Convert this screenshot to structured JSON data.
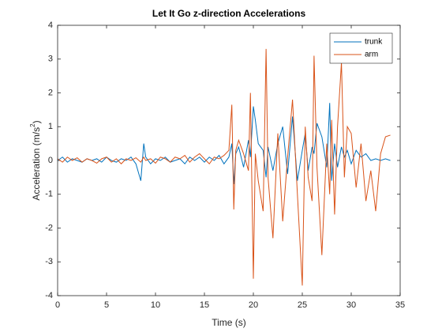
{
  "chart_data": {
    "type": "line",
    "title": "Let It Go z-direction Accelerations",
    "xlabel": "Time (s)",
    "ylabel": [
      "Acceleration (m/s",
      "2",
      ")"
    ],
    "x": [
      0,
      0.5,
      1,
      1.5,
      2,
      2.5,
      3,
      3.5,
      4,
      4.5,
      5,
      5.5,
      6,
      6.5,
      7,
      7.5,
      8,
      8.5,
      8.8,
      9,
      9.5,
      10,
      10.5,
      11,
      11.5,
      12,
      12.5,
      13,
      13.5,
      14,
      14.5,
      15,
      15.5,
      16,
      16.5,
      17,
      17.5,
      17.8,
      18,
      18.2,
      18.5,
      19,
      19.5,
      19.7,
      20,
      20.2,
      20.5,
      21,
      21.3,
      21.5,
      22,
      22.5,
      23,
      23.5,
      24,
      24.5,
      25,
      25.3,
      25.6,
      26,
      26.2,
      26.5,
      27,
      27.5,
      27.8,
      28,
      28.3,
      28.6,
      29,
      29.3,
      29.6,
      30,
      30.5,
      31,
      31.5,
      32,
      32.5,
      33,
      33.5,
      34
    ],
    "series": [
      {
        "name": "trunk",
        "color": "#0072BD",
        "values": [
          0,
          0.1,
          -0.05,
          0.05,
          0,
          -0.05,
          0.05,
          0,
          0.05,
          -0.05,
          0.1,
          0,
          -0.05,
          0.05,
          0,
          0.1,
          -0.1,
          -0.6,
          0.5,
          0.1,
          -0.1,
          0.05,
          0,
          0.1,
          -0.05,
          0,
          0.05,
          -0.1,
          0.1,
          0,
          0.1,
          -0.05,
          0.1,
          0,
          0.15,
          -0.1,
          0.1,
          0.5,
          -0.7,
          0.2,
          0.4,
          -0.2,
          0.6,
          0.1,
          1.6,
          1.2,
          0.5,
          0.3,
          -0.5,
          0.4,
          -0.3,
          0.5,
          1.0,
          -0.4,
          1.3,
          -0.6,
          0.3,
          0.8,
          -0.3,
          0.4,
          0.2,
          1.1,
          0.7,
          -0.2,
          1.7,
          -0.6,
          0.5,
          -0.2,
          0.4,
          0.1,
          0.3,
          -0.1,
          0.3,
          0.1,
          0.2,
          0,
          0.05,
          0,
          0.05,
          0
        ]
      },
      {
        "name": "arm",
        "color": "#D95319",
        "values": [
          0.05,
          -0.05,
          0.1,
          0,
          0.08,
          -0.05,
          0.05,
          0,
          -0.08,
          0.05,
          0.1,
          -0.05,
          0.05,
          -0.1,
          0.05,
          0,
          0.08,
          -0.05,
          0.1,
          0,
          0.05,
          -0.08,
          0.1,
          0.05,
          -0.05,
          0.1,
          0.05,
          0.15,
          -0.05,
          0.1,
          0.2,
          0.05,
          -0.1,
          0.1,
          0.05,
          0.15,
          0.3,
          1.65,
          -1.45,
          0.3,
          0.6,
          0.2,
          -0.3,
          2.0,
          -3.5,
          0.2,
          -0.6,
          -1.5,
          3.3,
          -0.5,
          -2.3,
          0.8,
          -1.8,
          0.1,
          1.8,
          -1.0,
          -3.7,
          1.0,
          -0.5,
          -1.2,
          3.1,
          -0.2,
          -2.8,
          0.5,
          -1.0,
          1.2,
          -1.6,
          1.0,
          2.9,
          -0.5,
          1.0,
          0.8,
          -0.8,
          0.5,
          -1.2,
          -0.3,
          -1.5,
          0.2,
          0.7,
          0.75
        ]
      }
    ],
    "xlim": [
      0,
      35
    ],
    "xticks": [
      0,
      5,
      10,
      15,
      20,
      25,
      30,
      35
    ],
    "ylim": [
      -4,
      4
    ],
    "yticks": [
      -4,
      -3,
      -2,
      -1,
      0,
      1,
      2,
      3,
      4
    ],
    "grid": false,
    "legend": "northeast"
  }
}
